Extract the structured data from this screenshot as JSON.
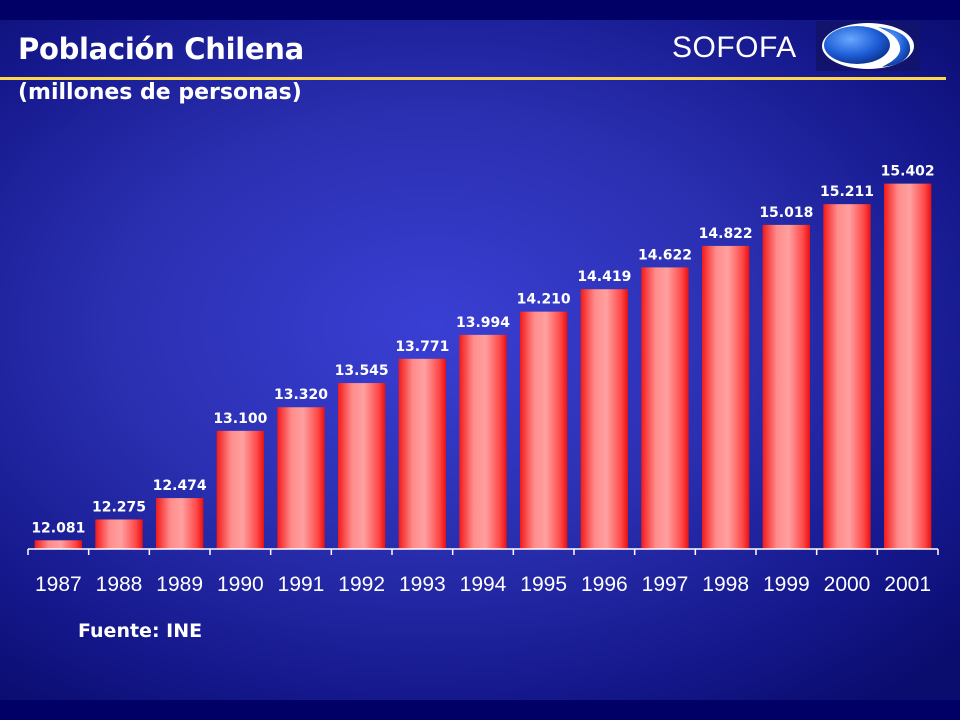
{
  "header": {
    "brand": "SOFOFA",
    "colors": {
      "rule": "#ffd84a",
      "background": "#2a2fb0"
    }
  },
  "footer": {
    "source": "Fuente: INE"
  },
  "chart_data": {
    "type": "bar",
    "title": "Población Chilena",
    "subtitle": "(millones de personas)",
    "xlabel": "",
    "ylabel": "",
    "categories": [
      "1987",
      "1988",
      "1989",
      "1990",
      "1991",
      "1992",
      "1993",
      "1994",
      "1995",
      "1996",
      "1997",
      "1998",
      "1999",
      "2000",
      "2001"
    ],
    "values": [
      12.081,
      12.275,
      12.474,
      13.1,
      13.32,
      13.545,
      13.771,
      13.994,
      14.21,
      14.419,
      14.622,
      14.822,
      15.018,
      15.211,
      15.402
    ],
    "labels": [
      "12.081",
      "12.275",
      "12.474",
      "13.100",
      "13.320",
      "13.545",
      "13.771",
      "13.994",
      "14.210",
      "14.419",
      "14.622",
      "14.822",
      "15.018",
      "15.211",
      "15.402"
    ],
    "ylim": [
      12.0,
      15.65
    ],
    "grid": false,
    "legend": "none",
    "bar_color": "#ff3b3b"
  }
}
